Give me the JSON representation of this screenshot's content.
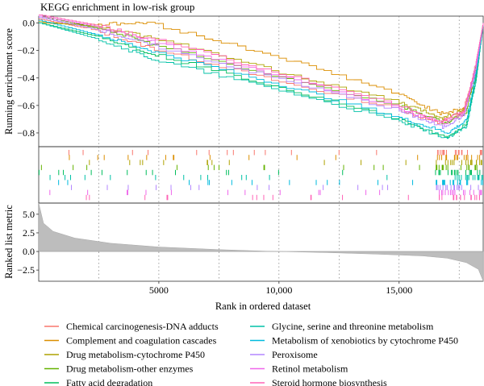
{
  "chart_data": {
    "type": "line",
    "title": "KEGG enrichment in low-risk group",
    "xlabel": "Rank in ordered dataset",
    "ylabel_top": "Running enrichment score",
    "ylabel_bottom": "Ranked list metric",
    "x_ticks": [
      5000,
      10000,
      15000
    ],
    "x_tick_labels": [
      "5000",
      "10,000",
      "15,000"
    ],
    "x_range": [
      0,
      18500
    ],
    "es_ticks": [
      0.0,
      -0.2,
      -0.4,
      -0.6,
      -0.8
    ],
    "es_tick_labels": [
      "0.0",
      "−0.2",
      "−0.4",
      "−0.6",
      "−0.8"
    ],
    "es_range": [
      -0.9,
      0.05
    ],
    "metric_ticks": [
      5.0,
      2.5,
      0.0,
      -2.5
    ],
    "metric_tick_labels": [
      "5.0",
      "2.5",
      "0.0",
      "−2.5"
    ],
    "metric_range": [
      -4.0,
      6.5
    ],
    "vertical_guides": [
      2500,
      5000,
      7500,
      10000,
      12500,
      15000,
      17500
    ],
    "legend_position": "bottom",
    "series": [
      {
        "name": "Chemical carcinogenesis-DNA adducts",
        "color": "#F8766D",
        "es": [
          [
            0,
            0.03
          ],
          [
            2000,
            -0.04
          ],
          [
            5000,
            -0.2
          ],
          [
            10000,
            -0.43
          ],
          [
            15000,
            -0.63
          ],
          [
            16600,
            -0.73
          ],
          [
            17600,
            -0.66
          ],
          [
            18200,
            -0.35
          ],
          [
            18500,
            0.0
          ]
        ]
      },
      {
        "name": "Complement and coagulation cascades",
        "color": "#DB8E00",
        "es": [
          [
            0,
            0.0
          ],
          [
            2000,
            -0.01
          ],
          [
            4500,
            0.0
          ],
          [
            10000,
            -0.25
          ],
          [
            15000,
            -0.52
          ],
          [
            16700,
            -0.66
          ],
          [
            17700,
            -0.62
          ],
          [
            18200,
            -0.4
          ],
          [
            18500,
            0.0
          ]
        ]
      },
      {
        "name": "Drug metabolism-cytochrome P450",
        "color": "#AEA200",
        "es": [
          [
            0,
            0.01
          ],
          [
            2500,
            -0.03
          ],
          [
            5000,
            -0.12
          ],
          [
            10000,
            -0.36
          ],
          [
            15000,
            -0.58
          ],
          [
            16800,
            -0.69
          ],
          [
            17700,
            -0.63
          ],
          [
            18200,
            -0.32
          ],
          [
            18500,
            0.0
          ]
        ]
      },
      {
        "name": "Drug metabolism-other enzymes",
        "color": "#64B200",
        "es": [
          [
            0,
            0.05
          ],
          [
            3000,
            -0.06
          ],
          [
            5000,
            -0.17
          ],
          [
            10000,
            -0.4
          ],
          [
            15000,
            -0.6
          ],
          [
            16900,
            -0.73
          ],
          [
            17800,
            -0.65
          ],
          [
            18200,
            -0.3
          ],
          [
            18500,
            0.0
          ]
        ]
      },
      {
        "name": "Fatty acid degradation",
        "color": "#00BD5C",
        "es": [
          [
            0,
            0.0
          ],
          [
            2500,
            -0.1
          ],
          [
            5000,
            -0.24
          ],
          [
            10000,
            -0.47
          ],
          [
            15000,
            -0.7
          ],
          [
            17000,
            -0.84
          ],
          [
            17800,
            -0.73
          ],
          [
            18200,
            -0.38
          ],
          [
            18500,
            0.0
          ]
        ]
      },
      {
        "name": "Glycine, serine and threonine metabolism",
        "color": "#00C1A7",
        "es": [
          [
            0,
            0.0
          ],
          [
            2500,
            -0.12
          ],
          [
            5000,
            -0.28
          ],
          [
            10000,
            -0.49
          ],
          [
            15000,
            -0.72
          ],
          [
            17000,
            -0.84
          ],
          [
            17800,
            -0.75
          ],
          [
            18200,
            -0.42
          ],
          [
            18500,
            0.0
          ]
        ]
      },
      {
        "name": "Metabolism of xenobiotics by cytochrome P450",
        "color": "#00BADE",
        "es": [
          [
            0,
            0.02
          ],
          [
            2500,
            -0.09
          ],
          [
            5000,
            -0.22
          ],
          [
            10000,
            -0.45
          ],
          [
            15000,
            -0.69
          ],
          [
            17000,
            -0.8
          ],
          [
            17800,
            -0.71
          ],
          [
            18200,
            -0.36
          ],
          [
            18500,
            0.0
          ]
        ]
      },
      {
        "name": "Peroxisome",
        "color": "#B385FF",
        "es": [
          [
            0,
            0.04
          ],
          [
            2500,
            -0.05
          ],
          [
            5000,
            -0.18
          ],
          [
            10000,
            -0.41
          ],
          [
            15000,
            -0.64
          ],
          [
            16800,
            -0.76
          ],
          [
            17700,
            -0.67
          ],
          [
            18200,
            -0.33
          ],
          [
            18500,
            0.0
          ]
        ]
      },
      {
        "name": "Retinol metabolism",
        "color": "#EF67EB",
        "es": [
          [
            0,
            0.05
          ],
          [
            2500,
            -0.03
          ],
          [
            5000,
            -0.15
          ],
          [
            10000,
            -0.39
          ],
          [
            15000,
            -0.62
          ],
          [
            16800,
            -0.74
          ],
          [
            17700,
            -0.66
          ],
          [
            18200,
            -0.3
          ],
          [
            18500,
            0.0
          ]
        ]
      },
      {
        "name": "Steroid hormone biosynthesis",
        "color": "#FF63B6",
        "es": [
          [
            0,
            0.06
          ],
          [
            2500,
            -0.02
          ],
          [
            5000,
            -0.13
          ],
          [
            10000,
            -0.37
          ],
          [
            15000,
            -0.6
          ],
          [
            16700,
            -0.72
          ],
          [
            17700,
            -0.64
          ],
          [
            18200,
            -0.28
          ],
          [
            18500,
            0.0
          ]
        ]
      }
    ],
    "ranked_metric": [
      [
        0,
        6.5
      ],
      [
        200,
        3.8
      ],
      [
        600,
        2.7
      ],
      [
        1500,
        1.8
      ],
      [
        3000,
        1.1
      ],
      [
        5000,
        0.6
      ],
      [
        7500,
        0.25
      ],
      [
        9500,
        0.03
      ],
      [
        10000,
        0.0
      ],
      [
        12000,
        -0.15
      ],
      [
        14000,
        -0.35
      ],
      [
        16000,
        -0.6
      ],
      [
        17000,
        -0.9
      ],
      [
        17800,
        -1.5
      ],
      [
        18300,
        -2.4
      ],
      [
        18500,
        -4.0
      ]
    ]
  }
}
